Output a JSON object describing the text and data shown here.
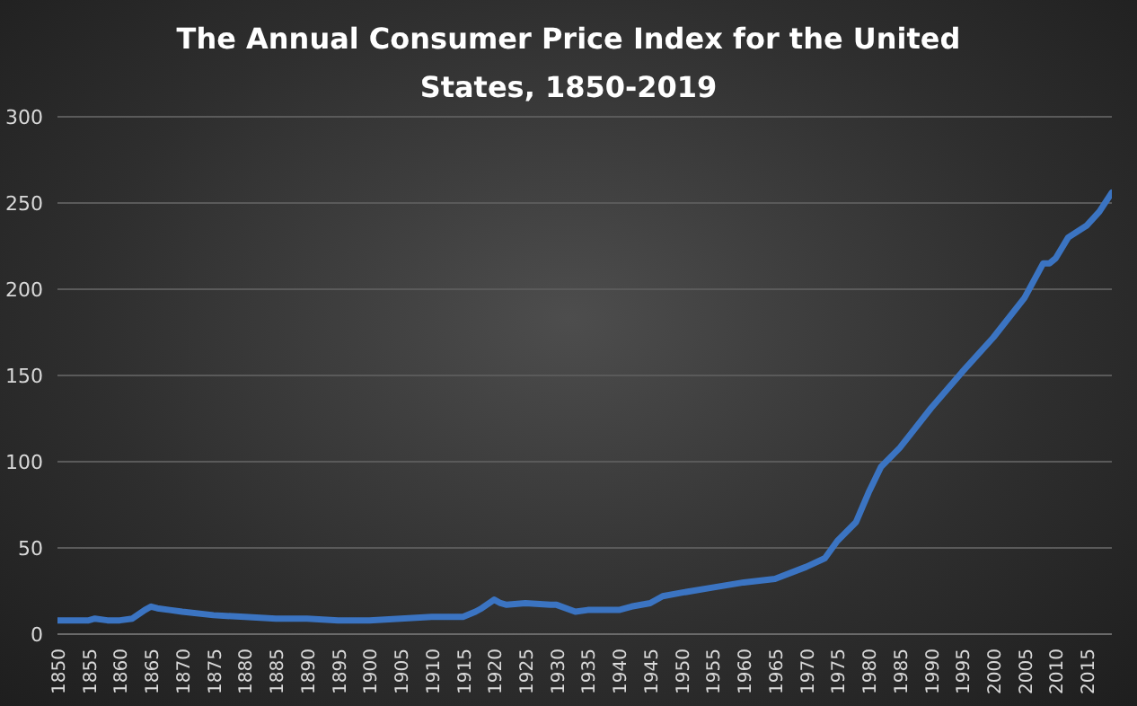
{
  "chart_data": {
    "type": "line",
    "title": "The Annual Consumer Price Index for the United States, 1850-2019",
    "x": [
      1850,
      1855,
      1856,
      1858,
      1860,
      1862,
      1864,
      1865,
      1866,
      1868,
      1870,
      1875,
      1880,
      1885,
      1890,
      1895,
      1900,
      1905,
      1910,
      1913,
      1915,
      1917,
      1918,
      1920,
      1921,
      1922,
      1925,
      1929,
      1930,
      1933,
      1935,
      1940,
      1942,
      1945,
      1947,
      1950,
      1955,
      1960,
      1965,
      1970,
      1973,
      1975,
      1978,
      1980,
      1982,
      1985,
      1990,
      1995,
      2000,
      2005,
      2008,
      2009,
      2010,
      2012,
      2015,
      2017,
      2019
    ],
    "series": [
      {
        "color": "#3b74c2",
        "values": [
          8,
          8,
          9,
          8,
          8,
          9,
          14,
          16,
          15,
          14,
          13,
          11,
          10,
          9,
          9,
          8,
          8,
          9,
          10,
          10,
          10,
          13,
          15,
          20,
          18,
          17,
          18,
          17,
          17,
          13,
          14,
          14,
          16,
          18,
          22,
          24,
          27,
          30,
          32,
          39,
          44,
          54,
          65,
          82,
          97,
          108,
          131,
          152,
          172,
          195,
          215,
          215,
          218,
          230,
          237,
          245,
          256
        ]
      }
    ],
    "xlim": [
      1850,
      2019
    ],
    "xticks": [
      1850,
      1855,
      1860,
      1865,
      1870,
      1875,
      1880,
      1885,
      1890,
      1895,
      1900,
      1905,
      1910,
      1915,
      1920,
      1925,
      1930,
      1935,
      1940,
      1945,
      1950,
      1955,
      1960,
      1965,
      1970,
      1975,
      1980,
      1985,
      1990,
      1995,
      2000,
      2005,
      2010,
      2015
    ],
    "ylim": [
      0,
      300
    ],
    "yticks": [
      0,
      50,
      100,
      150,
      200,
      250,
      300
    ],
    "grid": "y",
    "marker": "none",
    "line_style": "solid"
  }
}
